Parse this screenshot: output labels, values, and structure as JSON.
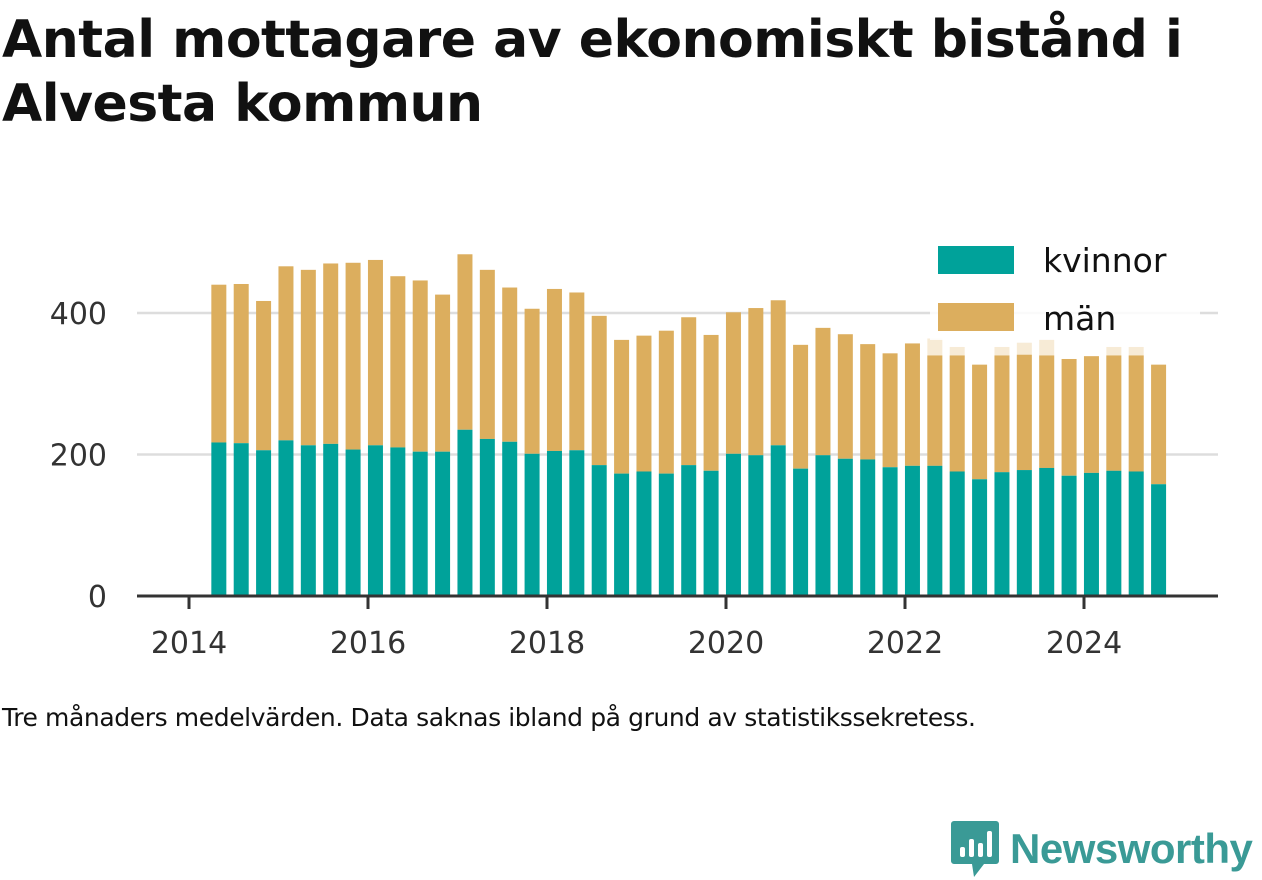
{
  "title": "Antal mottagare av ekonomiskt bistånd i Alvesta kommun",
  "caption": "Tre månaders medelvärden. Data saknas ibland på grund av statistikssekretess.",
  "brand": {
    "name": "Newsworthy",
    "icon": "newsworthy-logo-icon",
    "color": "#3a9a96"
  },
  "colors": {
    "kvinnor": "#00a29a",
    "man": "#dcae5e",
    "man_faded": "#f7ebd6",
    "grid": "#dddddd",
    "axis": "#333333"
  },
  "chart_data": {
    "type": "bar",
    "stacked": true,
    "title": "Antal mottagare av ekonomiskt bistånd i Alvesta kommun",
    "xlabel": "",
    "ylabel": "",
    "ylim": [
      0,
      520
    ],
    "y_ticks": [
      0,
      200,
      400
    ],
    "x_ticks": [
      "2014",
      "2016",
      "2018",
      "2020",
      "2022",
      "2024"
    ],
    "legend_position": "top-right",
    "grid": "horizontal",
    "categories": [
      "2014-05",
      "2014-08",
      "2014-11",
      "2015-02",
      "2015-05",
      "2015-08",
      "2015-11",
      "2016-02",
      "2016-05",
      "2016-08",
      "2016-11",
      "2017-02",
      "2017-05",
      "2017-08",
      "2017-11",
      "2018-02",
      "2018-05",
      "2018-08",
      "2018-11",
      "2019-02",
      "2019-05",
      "2019-08",
      "2019-11",
      "2020-02",
      "2020-05",
      "2020-08",
      "2020-11",
      "2021-02",
      "2021-05",
      "2021-08",
      "2021-11",
      "2022-02",
      "2022-05",
      "2022-08",
      "2022-11",
      "2023-02",
      "2023-05",
      "2023-08",
      "2023-11",
      "2024-02",
      "2024-05",
      "2024-08",
      "2024-11"
    ],
    "series": [
      {
        "name": "kvinnor",
        "values": [
          217,
          216,
          206,
          220,
          213,
          215,
          207,
          213,
          210,
          204,
          204,
          235,
          222,
          218,
          201,
          205,
          206,
          185,
          173,
          176,
          173,
          185,
          177,
          201,
          199,
          213,
          180,
          199,
          194,
          193,
          182,
          184,
          184,
          176,
          165,
          175,
          178,
          181,
          170,
          174,
          177,
          176,
          158
        ]
      },
      {
        "name": "män",
        "values": [
          223,
          225,
          211,
          246,
          248,
          255,
          264,
          262,
          242,
          242,
          222,
          248,
          239,
          218,
          205,
          229,
          223,
          211,
          189,
          192,
          202,
          209,
          192,
          200,
          208,
          205,
          175,
          180,
          176,
          163,
          161,
          173,
          156,
          164,
          162,
          165,
          163,
          159,
          165,
          165,
          163,
          164,
          169
        ]
      }
    ],
    "missing_total": [
      null,
      null,
      null,
      null,
      null,
      null,
      null,
      null,
      null,
      null,
      null,
      null,
      null,
      null,
      null,
      null,
      null,
      null,
      null,
      null,
      null,
      null,
      null,
      null,
      null,
      null,
      null,
      null,
      null,
      null,
      null,
      null,
      364,
      352,
      null,
      352,
      358,
      363,
      null,
      null,
      352,
      352,
      null
    ]
  }
}
